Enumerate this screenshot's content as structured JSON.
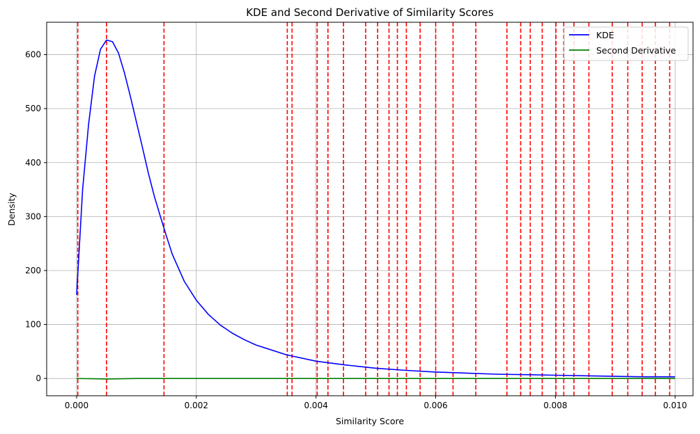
{
  "chart_data": {
    "type": "line",
    "title": "KDE and Second Derivative of Similarity Scores",
    "xlabel": "Similarity Score",
    "ylabel": "Density",
    "xlim": [
      -0.0005,
      0.0103
    ],
    "ylim": [
      -32,
      660
    ],
    "grid": true,
    "legend_position": "top-right",
    "x_ticks": [
      0.0,
      0.002,
      0.004,
      0.006,
      0.008,
      0.01
    ],
    "x_tick_labels": [
      "0.000",
      "0.002",
      "0.004",
      "0.006",
      "0.008",
      "0.010"
    ],
    "y_ticks": [
      0,
      100,
      200,
      300,
      400,
      500,
      600
    ],
    "y_tick_labels": [
      "0",
      "100",
      "200",
      "300",
      "400",
      "500",
      "600"
    ],
    "series": [
      {
        "name": "KDE",
        "color": "#0000ff",
        "x": [
          0.0,
          0.0001,
          0.0002,
          0.0003,
          0.0004,
          0.0005,
          0.0006,
          0.0007,
          0.0008,
          0.0009,
          0.001,
          0.0011,
          0.0012,
          0.0013,
          0.0014,
          0.0015,
          0.0016,
          0.0018,
          0.002,
          0.0022,
          0.0024,
          0.0026,
          0.0028,
          0.003,
          0.0035,
          0.004,
          0.0045,
          0.005,
          0.0055,
          0.006,
          0.0065,
          0.007,
          0.0075,
          0.008,
          0.0085,
          0.009,
          0.0095,
          0.01
        ],
        "y": [
          155,
          350,
          470,
          560,
          610,
          627,
          624,
          603,
          566,
          522,
          475,
          428,
          380,
          337,
          300,
          264,
          230,
          180,
          145,
          119,
          99,
          84,
          72,
          62,
          44,
          32,
          25,
          19,
          15,
          12,
          10,
          8,
          7,
          6,
          5,
          4,
          3,
          3
        ]
      },
      {
        "name": "Second Derivative",
        "color": "#008000",
        "x": [
          0.0,
          0.0005,
          0.001,
          0.002,
          0.004,
          0.006,
          0.008,
          0.01
        ],
        "y": [
          0,
          -1,
          0,
          0,
          0,
          0,
          0,
          0
        ]
      }
    ],
    "vlines": {
      "color": "#ff0000",
      "style": "dashed",
      "x": [
        2e-05,
        0.0005,
        0.00146,
        0.00352,
        0.0036,
        0.00402,
        0.0042,
        0.00446,
        0.00483,
        0.00503,
        0.00522,
        0.00536,
        0.00551,
        0.00574,
        0.006,
        0.00629,
        0.00667,
        0.00719,
        0.00742,
        0.00758,
        0.00778,
        0.00801,
        0.00814,
        0.00831,
        0.00856,
        0.00895,
        0.00921,
        0.00945,
        0.00967,
        0.00991
      ]
    }
  }
}
